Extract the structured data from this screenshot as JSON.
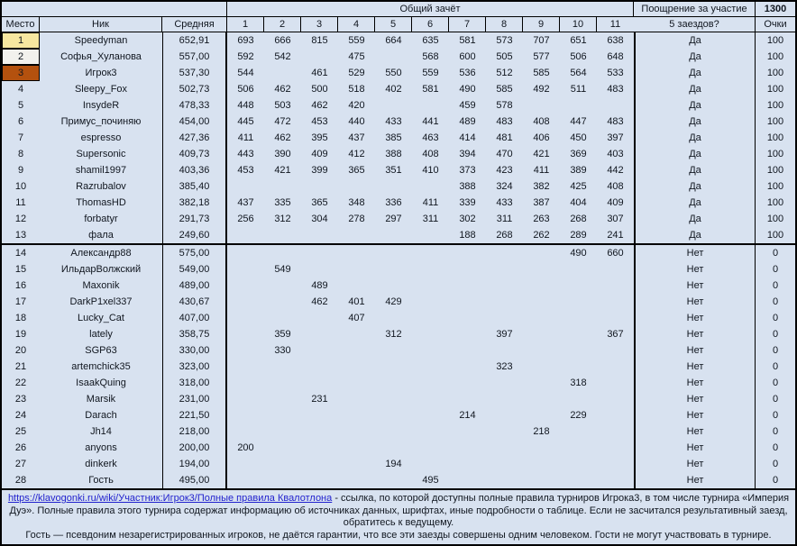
{
  "header": {
    "overall_title": "Общий зачёт",
    "participation_label": "Поощрение за участие",
    "participation_value": "1300",
    "col_place": "Место",
    "col_nick": "Ник",
    "col_avg": "Средняя",
    "race_numbers": [
      "1",
      "2",
      "3",
      "4",
      "5",
      "6",
      "7",
      "8",
      "9",
      "10",
      "11"
    ],
    "col_five_races": "5 заездов?",
    "col_points": "Очки"
  },
  "rows": [
    {
      "place": "1",
      "nick": "Speedyman",
      "avg": "652,91",
      "races": [
        "693",
        "666",
        "815",
        "559",
        "664",
        "635",
        "581",
        "573",
        "707",
        "651",
        "638"
      ],
      "five_races": "Да",
      "points": "100",
      "medal": "gold"
    },
    {
      "place": "2",
      "nick": "Софья_Хуланова",
      "avg": "557,00",
      "races": [
        "592",
        "542",
        "",
        "475",
        "",
        "568",
        "600",
        "505",
        "577",
        "506",
        "648"
      ],
      "five_races": "Да",
      "points": "100",
      "medal": "silver"
    },
    {
      "place": "3",
      "nick": "Игрок3",
      "avg": "537,30",
      "races": [
        "544",
        "",
        "461",
        "529",
        "550",
        "559",
        "536",
        "512",
        "585",
        "564",
        "533"
      ],
      "five_races": "Да",
      "points": "100",
      "medal": "bronze"
    },
    {
      "place": "4",
      "nick": "Sleepy_Fox",
      "avg": "502,73",
      "races": [
        "506",
        "462",
        "500",
        "518",
        "402",
        "581",
        "490",
        "585",
        "492",
        "511",
        "483"
      ],
      "five_races": "Да",
      "points": "100"
    },
    {
      "place": "5",
      "nick": "InsydeR",
      "avg": "478,33",
      "races": [
        "448",
        "503",
        "462",
        "420",
        "",
        "",
        "459",
        "578",
        "",
        "",
        ""
      ],
      "five_races": "Да",
      "points": "100"
    },
    {
      "place": "6",
      "nick": "Примус_починяю",
      "avg": "454,00",
      "races": [
        "445",
        "472",
        "453",
        "440",
        "433",
        "441",
        "489",
        "483",
        "408",
        "447",
        "483"
      ],
      "five_races": "Да",
      "points": "100"
    },
    {
      "place": "7",
      "nick": "espresso",
      "avg": "427,36",
      "races": [
        "411",
        "462",
        "395",
        "437",
        "385",
        "463",
        "414",
        "481",
        "406",
        "450",
        "397"
      ],
      "five_races": "Да",
      "points": "100"
    },
    {
      "place": "8",
      "nick": "Supersonic",
      "avg": "409,73",
      "races": [
        "443",
        "390",
        "409",
        "412",
        "388",
        "408",
        "394",
        "470",
        "421",
        "369",
        "403"
      ],
      "five_races": "Да",
      "points": "100"
    },
    {
      "place": "9",
      "nick": "shamil1997",
      "avg": "403,36",
      "races": [
        "453",
        "421",
        "399",
        "365",
        "351",
        "410",
        "373",
        "423",
        "411",
        "389",
        "442"
      ],
      "five_races": "Да",
      "points": "100"
    },
    {
      "place": "10",
      "nick": "Razrubalov",
      "avg": "385,40",
      "races": [
        "",
        "",
        "",
        "",
        "",
        "",
        "388",
        "324",
        "382",
        "425",
        "408"
      ],
      "five_races": "Да",
      "points": "100"
    },
    {
      "place": "11",
      "nick": "ThomasHD",
      "avg": "382,18",
      "races": [
        "437",
        "335",
        "365",
        "348",
        "336",
        "411",
        "339",
        "433",
        "387",
        "404",
        "409"
      ],
      "five_races": "Да",
      "points": "100"
    },
    {
      "place": "12",
      "nick": "forbatyr",
      "avg": "291,73",
      "races": [
        "256",
        "312",
        "304",
        "278",
        "297",
        "311",
        "302",
        "311",
        "263",
        "268",
        "307"
      ],
      "five_races": "Да",
      "points": "100"
    },
    {
      "place": "13",
      "nick": "фала",
      "avg": "249,60",
      "races": [
        "",
        "",
        "",
        "",
        "",
        "",
        "188",
        "268",
        "262",
        "289",
        "241"
      ],
      "five_races": "Да",
      "points": "100"
    },
    {
      "place": "14",
      "nick": "Александр88",
      "avg": "575,00",
      "races": [
        "",
        "",
        "",
        "",
        "",
        "",
        "",
        "",
        "",
        "490",
        "660"
      ],
      "five_races": "Нет",
      "points": "0",
      "divider_before": true
    },
    {
      "place": "15",
      "nick": "ИльдарВолжский",
      "avg": "549,00",
      "races": [
        "",
        "549",
        "",
        "",
        "",
        "",
        "",
        "",
        "",
        "",
        ""
      ],
      "five_races": "Нет",
      "points": "0"
    },
    {
      "place": "16",
      "nick": "Maxonik",
      "avg": "489,00",
      "races": [
        "",
        "",
        "489",
        "",
        "",
        "",
        "",
        "",
        "",
        "",
        ""
      ],
      "five_races": "Нет",
      "points": "0"
    },
    {
      "place": "17",
      "nick": "DarkP1xel337",
      "avg": "430,67",
      "races": [
        "",
        "",
        "462",
        "401",
        "429",
        "",
        "",
        "",
        "",
        "",
        ""
      ],
      "five_races": "Нет",
      "points": "0"
    },
    {
      "place": "18",
      "nick": "Lucky_Cat",
      "avg": "407,00",
      "races": [
        "",
        "",
        "",
        "407",
        "",
        "",
        "",
        "",
        "",
        "",
        ""
      ],
      "five_races": "Нет",
      "points": "0"
    },
    {
      "place": "19",
      "nick": "lately",
      "avg": "358,75",
      "races": [
        "",
        "359",
        "",
        "",
        "312",
        "",
        "",
        "397",
        "",
        "",
        "367"
      ],
      "five_races": "Нет",
      "points": "0"
    },
    {
      "place": "20",
      "nick": "SGP63",
      "avg": "330,00",
      "races": [
        "",
        "330",
        "",
        "",
        "",
        "",
        "",
        "",
        "",
        "",
        ""
      ],
      "five_races": "Нет",
      "points": "0"
    },
    {
      "place": "21",
      "nick": "artemchick35",
      "avg": "323,00",
      "races": [
        "",
        "",
        "",
        "",
        "",
        "",
        "",
        "323",
        "",
        "",
        ""
      ],
      "five_races": "Нет",
      "points": "0"
    },
    {
      "place": "22",
      "nick": "IsaakQuing",
      "avg": "318,00",
      "races": [
        "",
        "",
        "",
        "",
        "",
        "",
        "",
        "",
        "",
        "318",
        ""
      ],
      "five_races": "Нет",
      "points": "0"
    },
    {
      "place": "23",
      "nick": "Marsik",
      "avg": "231,00",
      "races": [
        "",
        "",
        "231",
        "",
        "",
        "",
        "",
        "",
        "",
        "",
        ""
      ],
      "five_races": "Нет",
      "points": "0"
    },
    {
      "place": "24",
      "nick": "Darach",
      "avg": "221,50",
      "races": [
        "",
        "",
        "",
        "",
        "",
        "",
        "214",
        "",
        "",
        "229",
        ""
      ],
      "five_races": "Нет",
      "points": "0"
    },
    {
      "place": "25",
      "nick": "Jh14",
      "avg": "218,00",
      "races": [
        "",
        "",
        "",
        "",
        "",
        "",
        "",
        "",
        "218",
        "",
        ""
      ],
      "five_races": "Нет",
      "points": "0"
    },
    {
      "place": "26",
      "nick": "anyons",
      "avg": "200,00",
      "races": [
        "200",
        "",
        "",
        "",
        "",
        "",
        "",
        "",
        "",
        "",
        ""
      ],
      "five_races": "Нет",
      "points": "0"
    },
    {
      "place": "27",
      "nick": "dinkerk",
      "avg": "194,00",
      "races": [
        "",
        "",
        "",
        "",
        "194",
        "",
        "",
        "",
        "",
        "",
        ""
      ],
      "five_races": "Нет",
      "points": "0"
    },
    {
      "place": "28",
      "nick": "Гость",
      "avg": "495,00",
      "races": [
        "",
        "",
        "",
        "",
        "",
        "495",
        "",
        "",
        "",
        "",
        ""
      ],
      "five_races": "Нет",
      "points": "0"
    }
  ],
  "footer": {
    "link_text": "https://klavogonki.ru/wiki/Участник:Игрок3/Полные правила Квалотлона",
    "p1_rest": " - ссылка, по которой доступны полные правила турниров Игрока3, в том числе турнира «Империя Дуэ». Полные правила этого турнира содержат информацию об источниках данных, шрифтах, иные подробности о таблице. Если не засчитался результативный заезд, обратитесь к ведущему.",
    "p2": "Гость — псевдоним незарегистрированных игроков, не даётся гарантии, что все эти заезды совершены одним человеком. Гости не могут участвовать в турнире."
  },
  "colors": {
    "table_background": "#D8E2F0",
    "gold": "#F6E7A0",
    "silver": "#F2F1ED",
    "bronze": "#B4510E",
    "link": "#2222CE",
    "border": "#000000"
  }
}
